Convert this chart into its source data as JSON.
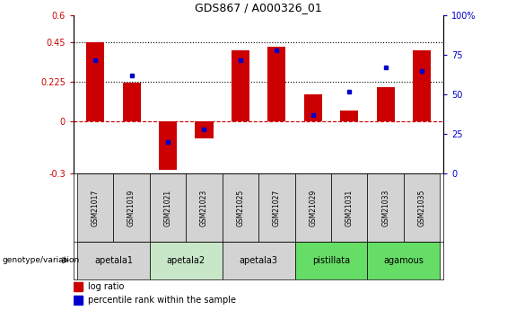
{
  "title": "GDS867 / A000326_01",
  "samples": [
    "GSM21017",
    "GSM21019",
    "GSM21021",
    "GSM21023",
    "GSM21025",
    "GSM21027",
    "GSM21029",
    "GSM21031",
    "GSM21033",
    "GSM21035"
  ],
  "log_ratio": [
    0.45,
    0.22,
    -0.28,
    -0.1,
    0.4,
    0.42,
    0.15,
    0.06,
    0.19,
    0.4
  ],
  "percentile": [
    72,
    62,
    20,
    28,
    72,
    78,
    37,
    52,
    67,
    65
  ],
  "ylim_left": [
    -0.3,
    0.6
  ],
  "ylim_right": [
    0,
    100
  ],
  "yticks_left": [
    -0.3,
    0,
    0.225,
    0.45,
    0.6
  ],
  "yticks_right": [
    0,
    25,
    50,
    75,
    100
  ],
  "ytick_labels_left": [
    "-0.3",
    "0",
    "0.225",
    "0.45",
    "0.6"
  ],
  "ytick_labels_right": [
    "0",
    "25",
    "50",
    "75",
    "100%"
  ],
  "hlines": [
    0.225,
    0.45
  ],
  "bar_color": "#cc0000",
  "dot_color": "#0000cc",
  "zero_line_color": "#cc0000",
  "groups": [
    {
      "name": "apetala1",
      "indices": [
        0,
        1
      ],
      "color": "#d3d3d3"
    },
    {
      "name": "apetala2",
      "indices": [
        2,
        3
      ],
      "color": "#c8e6c8"
    },
    {
      "name": "apetala3",
      "indices": [
        4,
        5
      ],
      "color": "#d3d3d3"
    },
    {
      "name": "pistillata",
      "indices": [
        6,
        7
      ],
      "color": "#66dd66"
    },
    {
      "name": "agamous",
      "indices": [
        8,
        9
      ],
      "color": "#66dd66"
    }
  ],
  "sample_box_color": "#d3d3d3",
  "genotype_label": "genotype/variation",
  "legend_items": [
    {
      "label": "log ratio",
      "color": "#cc0000"
    },
    {
      "label": "percentile rank within the sample",
      "color": "#0000cc"
    }
  ],
  "bar_width": 0.5
}
